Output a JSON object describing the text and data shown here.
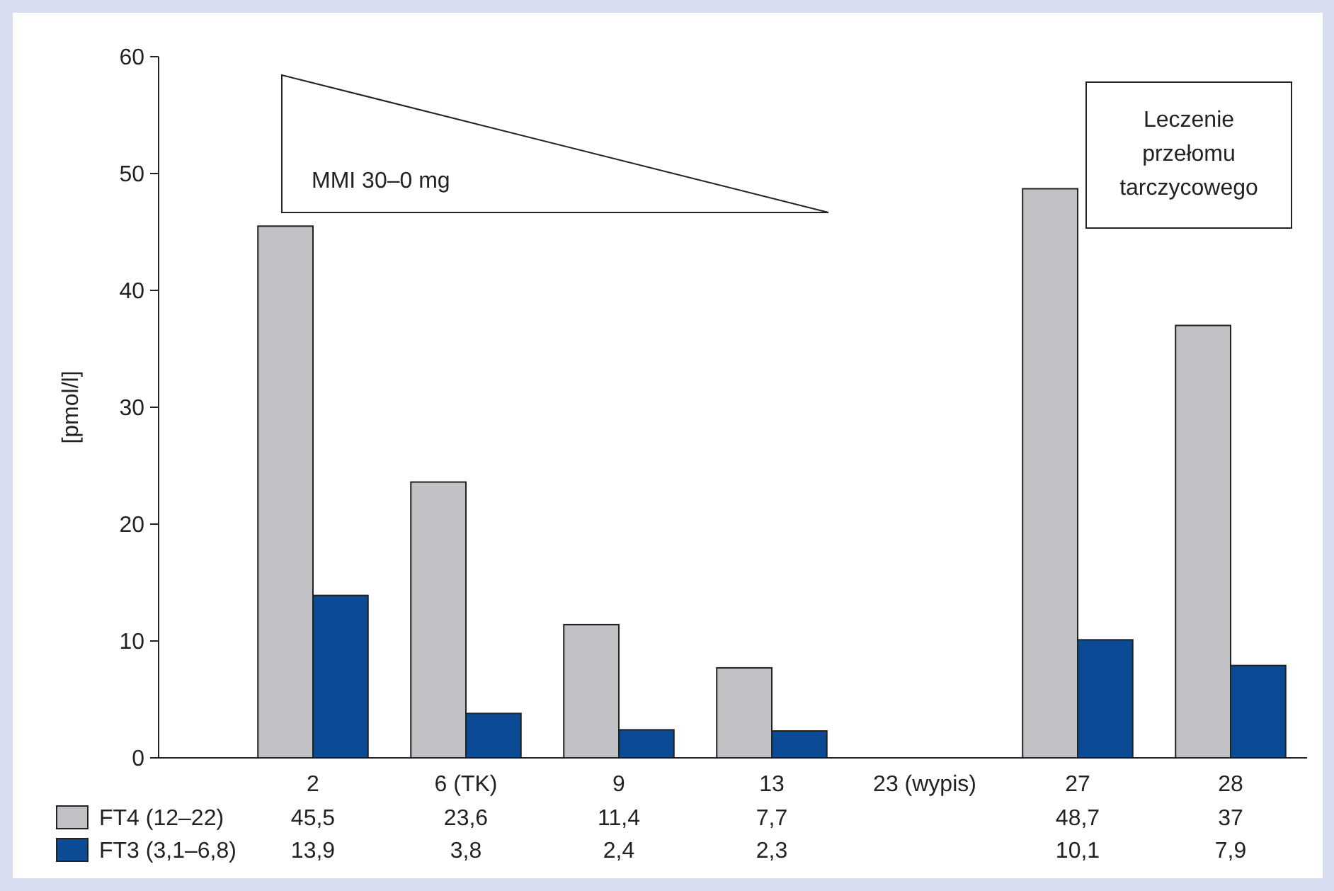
{
  "chart_data": {
    "type": "bar",
    "ylabel": "[pmol/l]",
    "categories": [
      "2",
      "6 (TK)",
      "9",
      "13",
      "23 (wypis)",
      "27",
      "28"
    ],
    "series": [
      {
        "name": "FT4 (12–22)",
        "color": "#c0c1c4",
        "values": [
          45.5,
          23.6,
          11.4,
          7.7,
          null,
          48.7,
          37
        ],
        "value_labels": [
          "45,5",
          "23,6",
          "11,4",
          "7,7",
          null,
          "48,7",
          "37"
        ]
      },
      {
        "name": "FT3 (3,1–6,8)",
        "color": "#0b4a94",
        "values": [
          13.9,
          3.8,
          2.4,
          2.3,
          null,
          10.1,
          7.9
        ],
        "value_labels": [
          "13,9",
          "3,8",
          "2,4",
          "2,3",
          null,
          "10,1",
          "7,9"
        ]
      }
    ],
    "ylim": [
      0,
      60
    ],
    "yticks": [
      0,
      10,
      20,
      30,
      40,
      50,
      60
    ],
    "grid": false,
    "legend": "bottom left",
    "annotations": [
      "MMI 30–0 mg",
      "Leczenie przełomu tarczycowego"
    ]
  }
}
